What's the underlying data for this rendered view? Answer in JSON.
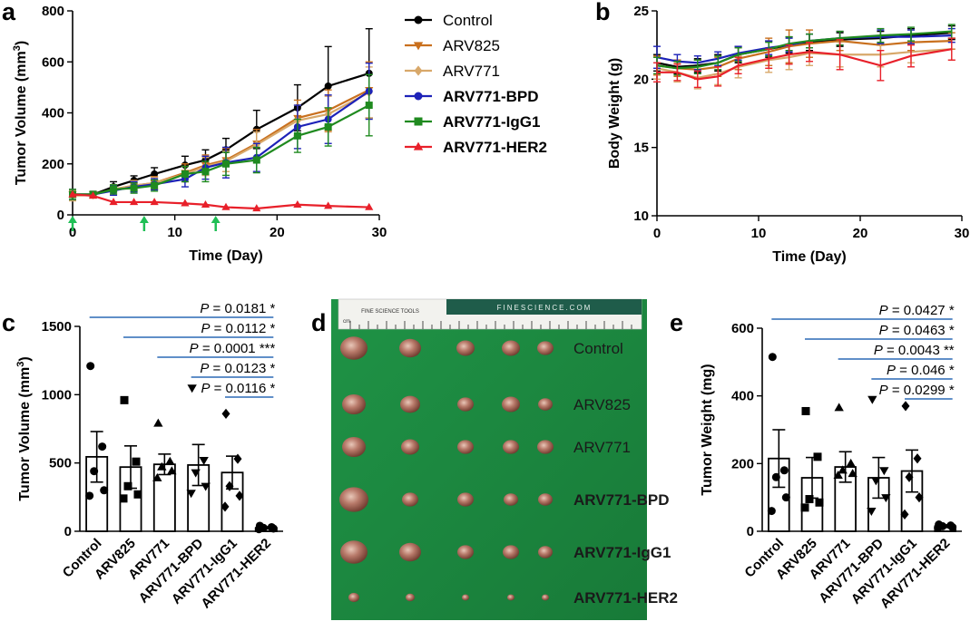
{
  "panel_labels": [
    "a",
    "b",
    "c",
    "d",
    "e"
  ],
  "colors": {
    "Control": "#000000",
    "ARV825": "#c9701e",
    "ARV771": "#d8a86a",
    "ARV771-BPD": "#1d22b8",
    "ARV771-IgG1": "#1f8a1f",
    "ARV771-HER2": "#e8202a",
    "sig_line": "#4a7fc0",
    "arrow": "#1fbf55",
    "photo_bg": "#1d8a3e"
  },
  "chart_data": [
    {
      "id": "a",
      "type": "line",
      "xlabel": "Time (Day)",
      "ylabel": "Tumor Volume (mm3)",
      "xlim": [
        0,
        30
      ],
      "ylim": [
        0,
        800
      ],
      "xticks": [
        "0",
        "10",
        "20",
        "30"
      ],
      "yticks": [
        "0",
        "200",
        "400",
        "600",
        "800"
      ],
      "treatment_days": [
        0,
        7,
        14
      ],
      "series": [
        {
          "name": "Control",
          "marker": "circle",
          "bold": false,
          "x": [
            0,
            2,
            4,
            6,
            8,
            11,
            13,
            15,
            18,
            22,
            25,
            29
          ],
          "y": [
            80,
            80,
            110,
            135,
            160,
            195,
            215,
            255,
            335,
            420,
            505,
            555
          ],
          "err": [
            20,
            12,
            20,
            18,
            25,
            35,
            40,
            45,
            75,
            90,
            155,
            175
          ]
        },
        {
          "name": "ARV825",
          "marker": "tri-down",
          "bold": false,
          "x": [
            0,
            2,
            4,
            6,
            8,
            11,
            13,
            15,
            18,
            22,
            25,
            29
          ],
          "y": [
            80,
            80,
            100,
            115,
            125,
            165,
            195,
            215,
            280,
            380,
            410,
            490
          ],
          "err": [
            20,
            12,
            18,
            20,
            25,
            35,
            40,
            45,
            55,
            70,
            80,
            110
          ]
        },
        {
          "name": "ARV771",
          "marker": "diamond",
          "bold": false,
          "x": [
            0,
            2,
            4,
            6,
            8,
            11,
            13,
            15,
            18,
            22,
            25,
            29
          ],
          "y": [
            75,
            78,
            100,
            115,
            125,
            160,
            190,
            210,
            275,
            370,
            395,
            480
          ],
          "err": [
            20,
            12,
            18,
            18,
            22,
            30,
            35,
            40,
            50,
            60,
            70,
            100
          ]
        },
        {
          "name": "ARV771-BPD",
          "marker": "circle",
          "bold": true,
          "x": [
            0,
            2,
            4,
            6,
            8,
            11,
            13,
            15,
            18,
            22,
            25,
            29
          ],
          "y": [
            80,
            80,
            95,
            110,
            120,
            140,
            185,
            205,
            225,
            345,
            375,
            485
          ],
          "err": [
            20,
            12,
            18,
            20,
            22,
            30,
            45,
            60,
            55,
            85,
            95,
            110
          ]
        },
        {
          "name": "ARV771-IgG1",
          "marker": "square",
          "bold": true,
          "x": [
            0,
            2,
            4,
            6,
            8,
            11,
            13,
            15,
            18,
            22,
            25,
            29
          ],
          "y": [
            80,
            80,
            100,
            105,
            115,
            160,
            170,
            200,
            215,
            310,
            345,
            430
          ],
          "err": [
            20,
            12,
            18,
            20,
            22,
            30,
            40,
            45,
            50,
            65,
            75,
            120
          ]
        },
        {
          "name": "ARV771-HER2",
          "marker": "triangle",
          "bold": true,
          "x": [
            0,
            2,
            4,
            6,
            8,
            11,
            13,
            15,
            18,
            22,
            25,
            29
          ],
          "y": [
            80,
            75,
            50,
            50,
            50,
            45,
            40,
            30,
            25,
            40,
            35,
            30
          ],
          "err": [
            0,
            0,
            0,
            0,
            0,
            0,
            0,
            0,
            0,
            0,
            0,
            0
          ]
        }
      ]
    },
    {
      "id": "b",
      "type": "line",
      "xlabel": "Time (Day)",
      "ylabel": "Body Weight (g)",
      "xlim": [
        0,
        30
      ],
      "ylim": [
        10,
        25
      ],
      "xticks": [
        "0",
        "10",
        "20",
        "30"
      ],
      "yticks": [
        "10",
        "15",
        "20",
        "25"
      ],
      "series": [
        {
          "name": "Control",
          "x": [
            0,
            2,
            4,
            6,
            8,
            11,
            13,
            15,
            18,
            22,
            25,
            29
          ],
          "y": [
            21.2,
            20.9,
            21.0,
            21.2,
            21.8,
            22.2,
            22.5,
            22.7,
            22.9,
            23.0,
            23.2,
            23.4
          ],
          "err": [
            0.6,
            0.5,
            0.5,
            0.6,
            0.6,
            0.6,
            0.6,
            0.6,
            0.5,
            0.5,
            0.5,
            0.5
          ]
        },
        {
          "name": "ARV825",
          "x": [
            0,
            2,
            4,
            6,
            8,
            11,
            13,
            15,
            18,
            22,
            25,
            29
          ],
          "y": [
            21.0,
            20.8,
            20.7,
            20.9,
            21.5,
            22.0,
            22.4,
            22.6,
            22.8,
            22.5,
            22.7,
            22.8
          ],
          "err": [
            0.7,
            0.6,
            0.7,
            0.7,
            0.8,
            1.0,
            1.2,
            1.0,
            0.7,
            0.7,
            0.6,
            0.6
          ]
        },
        {
          "name": "ARV771",
          "x": [
            0,
            2,
            4,
            6,
            8,
            11,
            13,
            15,
            18,
            22,
            25,
            29
          ],
          "y": [
            20.8,
            20.5,
            20.1,
            20.4,
            20.9,
            21.4,
            21.6,
            21.9,
            21.8,
            21.8,
            22.0,
            22.2
          ],
          "err": [
            0.8,
            0.7,
            0.8,
            0.8,
            0.8,
            0.9,
            0.9,
            0.9,
            0.9,
            0.9,
            0.8,
            0.8
          ]
        },
        {
          "name": "ARV771-BPD",
          "x": [
            0,
            2,
            4,
            6,
            8,
            11,
            13,
            15,
            18,
            22,
            25,
            29
          ],
          "y": [
            21.6,
            21.3,
            21.2,
            21.5,
            21.9,
            22.3,
            22.5,
            22.8,
            23.0,
            23.1,
            23.1,
            23.2
          ],
          "err": [
            0.8,
            0.5,
            0.5,
            0.5,
            0.5,
            0.5,
            0.5,
            0.5,
            0.5,
            0.5,
            0.5,
            0.5
          ]
        },
        {
          "name": "ARV771-IgG1",
          "x": [
            0,
            2,
            4,
            6,
            8,
            11,
            13,
            15,
            18,
            22,
            25,
            29
          ],
          "y": [
            21.0,
            20.8,
            20.9,
            21.2,
            21.8,
            22.2,
            22.6,
            22.8,
            23.0,
            23.2,
            23.3,
            23.5
          ],
          "err": [
            0.6,
            0.5,
            0.5,
            0.5,
            0.5,
            0.5,
            0.5,
            0.5,
            0.5,
            0.5,
            0.5,
            0.5
          ]
        },
        {
          "name": "ARV771-HER2",
          "x": [
            0,
            2,
            4,
            6,
            8,
            11,
            13,
            15,
            18,
            22,
            25,
            29
          ],
          "y": [
            20.5,
            20.5,
            20.0,
            20.2,
            21.0,
            21.5,
            21.8,
            22.0,
            21.8,
            21.0,
            21.7,
            22.2
          ],
          "err": [
            0.7,
            0.6,
            0.6,
            0.7,
            0.6,
            0.7,
            0.7,
            0.7,
            1.1,
            1.1,
            0.8,
            0.8
          ]
        }
      ]
    },
    {
      "id": "c",
      "type": "bar",
      "ylabel": "Tumor Volume (mm3)",
      "ylim": [
        0,
        1500
      ],
      "yticks": [
        "0",
        "500",
        "1000",
        "1500"
      ],
      "categories": [
        "Control",
        "ARV825",
        "ARV771",
        "ARV771-BPD",
        "ARV771-IgG1",
        "ARV771-HER2"
      ],
      "values": [
        545,
        470,
        490,
        485,
        430,
        25
      ],
      "sem": [
        185,
        155,
        75,
        150,
        120,
        8
      ],
      "points": [
        [
          1210,
          620,
          440,
          300,
          260
        ],
        [
          960,
          510,
          330,
          270,
          240
        ],
        [
          790,
          510,
          470,
          440,
          390
        ],
        [
          1050,
          520,
          430,
          330,
          280
        ],
        [
          860,
          530,
          330,
          260,
          180
        ],
        [
          40,
          30,
          25,
          20,
          15
        ]
      ],
      "markers": [
        "circle",
        "square",
        "triangle",
        "tri-down",
        "diamond",
        "circle"
      ],
      "significance": [
        {
          "from": 0,
          "to": 5,
          "label": "P = 0.0181 *"
        },
        {
          "from": 1,
          "to": 5,
          "label": "P = 0.0112 *"
        },
        {
          "from": 2,
          "to": 5,
          "label": "P = 0.0001 ***"
        },
        {
          "from": 3,
          "to": 5,
          "label": "P = 0.0123 *"
        },
        {
          "from": 4,
          "to": 5,
          "label": "P = 0.0116 *"
        }
      ]
    },
    {
      "id": "e",
      "type": "bar",
      "ylabel": "Tumor Weight (mg)",
      "ylim": [
        0,
        600
      ],
      "yticks": [
        "0",
        "200",
        "400",
        "600"
      ],
      "categories": [
        "Control",
        "ARV825",
        "ARV771",
        "ARV771-BPD",
        "ARV771-IgG1",
        "ARV771-HER2"
      ],
      "values": [
        215,
        158,
        190,
        158,
        178,
        15
      ],
      "sem": [
        85,
        60,
        45,
        60,
        62,
        4
      ],
      "points": [
        [
          515,
          180,
          160,
          100,
          60
        ],
        [
          355,
          220,
          95,
          85,
          70
        ],
        [
          365,
          200,
          180,
          170,
          165
        ],
        [
          390,
          180,
          150,
          100,
          60
        ],
        [
          370,
          215,
          160,
          100,
          50
        ],
        [
          20,
          17,
          15,
          12,
          10
        ]
      ],
      "markers": [
        "circle",
        "square",
        "triangle",
        "tri-down",
        "diamond",
        "circle"
      ],
      "significance": [
        {
          "from": 0,
          "to": 5,
          "label": "P = 0.0427 *"
        },
        {
          "from": 1,
          "to": 5,
          "label": "P = 0.0463 *"
        },
        {
          "from": 2,
          "to": 5,
          "label": "P = 0.0043 **"
        },
        {
          "from": 3,
          "to": 5,
          "label": "P = 0.046 *"
        },
        {
          "from": 4,
          "to": 5,
          "label": "P = 0.0299 *"
        }
      ]
    }
  ],
  "photo": {
    "rows": [
      "Control",
      "ARV825",
      "ARV771",
      "ARV771-BPD",
      "ARV771-IgG1",
      "ARV771-HER2"
    ],
    "bold_rows": [
      false,
      false,
      false,
      true,
      true,
      true
    ],
    "ruler_brand": "FINESCIENCE.COM",
    "ruler_tag": "FINE SCIENCE TOOLS",
    "ruler_unit": "cm"
  }
}
